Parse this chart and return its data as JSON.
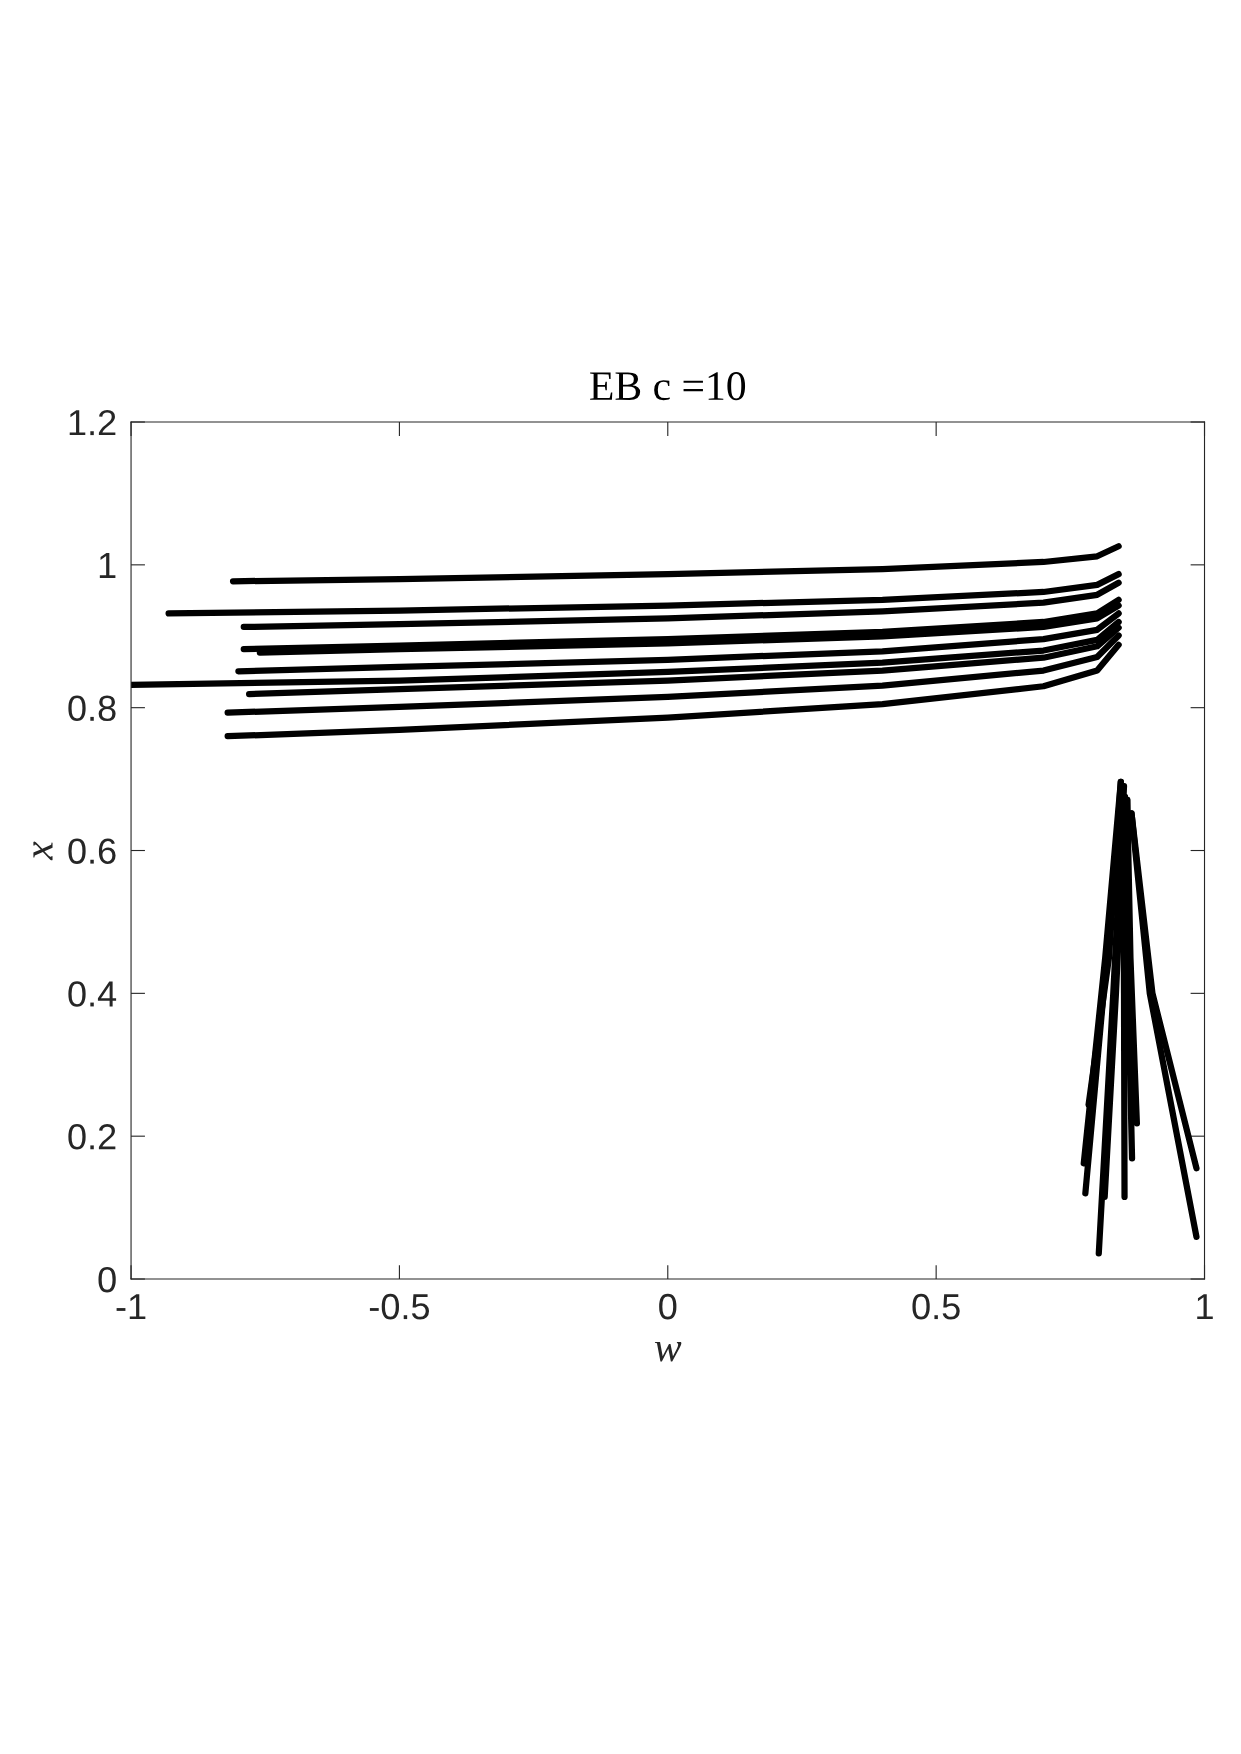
{
  "chart_data": {
    "type": "line",
    "title": "EB c =10",
    "xlabel": "w",
    "ylabel": "x",
    "xlim": [
      -1,
      1
    ],
    "ylim": [
      0,
      1.2
    ],
    "xticks": [
      -1,
      -0.5,
      0,
      0.5,
      1
    ],
    "yticks": [
      0,
      0.2,
      0.4,
      0.6,
      0.8,
      1,
      1.2
    ],
    "grid": false,
    "marker": "none",
    "line_style": "solid",
    "series": [
      {
        "color": "#000000",
        "x": [
          -0.81,
          -0.5,
          0,
          0.4,
          0.7,
          0.8,
          0.84
        ],
        "values": [
          0.977,
          0.98,
          0.987,
          0.994,
          1.004,
          1.012,
          1.026
        ]
      },
      {
        "color": "#000000",
        "x": [
          -0.93,
          -0.5,
          0,
          0.4,
          0.7,
          0.8,
          0.84
        ],
        "values": [
          0.932,
          0.936,
          0.943,
          0.951,
          0.962,
          0.972,
          0.987
        ]
      },
      {
        "color": "#000000",
        "x": [
          -0.79,
          -0.5,
          0,
          0.4,
          0.7,
          0.8,
          0.84
        ],
        "values": [
          0.913,
          0.917,
          0.925,
          0.935,
          0.947,
          0.958,
          0.975
        ]
      },
      {
        "color": "#000000",
        "x": [
          -0.79,
          -0.5,
          0,
          0.4,
          0.7,
          0.8,
          0.84
        ],
        "values": [
          0.882,
          0.887,
          0.896,
          0.906,
          0.92,
          0.932,
          0.951
        ]
      },
      {
        "color": "#000000",
        "x": [
          -0.76,
          -0.5,
          0,
          0.4,
          0.7,
          0.8,
          0.84
        ],
        "values": [
          0.877,
          0.882,
          0.89,
          0.9,
          0.913,
          0.925,
          0.943
        ]
      },
      {
        "color": "#000000",
        "x": [
          -0.8,
          -0.5,
          0,
          0.4,
          0.7,
          0.8,
          0.84
        ],
        "values": [
          0.851,
          0.857,
          0.867,
          0.879,
          0.896,
          0.909,
          0.932
        ]
      },
      {
        "color": "#000000",
        "x": [
          -1.0,
          -0.5,
          0,
          0.4,
          0.7,
          0.8,
          0.84
        ],
        "values": [
          0.832,
          0.838,
          0.85,
          0.863,
          0.88,
          0.895,
          0.92
        ]
      },
      {
        "color": "#000000",
        "x": [
          -0.78,
          -0.5,
          0,
          0.4,
          0.7,
          0.8,
          0.84
        ],
        "values": [
          0.819,
          0.826,
          0.838,
          0.852,
          0.87,
          0.886,
          0.912
        ]
      },
      {
        "color": "#000000",
        "x": [
          -0.82,
          -0.5,
          0,
          0.4,
          0.7,
          0.8,
          0.84
        ],
        "values": [
          0.793,
          0.801,
          0.815,
          0.831,
          0.852,
          0.871,
          0.901
        ]
      },
      {
        "color": "#000000",
        "x": [
          -0.82,
          -0.5,
          0,
          0.4,
          0.7,
          0.8,
          0.84
        ],
        "values": [
          0.76,
          0.769,
          0.786,
          0.805,
          0.83,
          0.852,
          0.888
        ]
      },
      {
        "color": "#000000",
        "x": [
          0.784,
          0.822,
          0.844
        ],
        "values": [
          0.244,
          0.45,
          0.696
        ]
      },
      {
        "color": "#000000",
        "x": [
          0.775,
          0.815,
          0.844
        ],
        "values": [
          0.162,
          0.45,
          0.696
        ]
      },
      {
        "color": "#000000",
        "x": [
          0.778,
          0.818,
          0.848
        ],
        "values": [
          0.12,
          0.45,
          0.68
        ]
      },
      {
        "color": "#000000",
        "x": [
          0.803,
          0.83,
          0.85
        ],
        "values": [
          0.036,
          0.4,
          0.69
        ]
      },
      {
        "color": "#000000",
        "x": [
          0.814,
          0.835,
          0.852
        ],
        "values": [
          0.115,
          0.4,
          0.675
        ]
      },
      {
        "color": "#000000",
        "x": [
          0.851,
          0.85,
          0.848
        ],
        "values": [
          0.115,
          0.4,
          0.69
        ]
      },
      {
        "color": "#000000",
        "x": [
          0.865,
          0.858,
          0.856
        ],
        "values": [
          0.169,
          0.4,
          0.671
        ]
      },
      {
        "color": "#000000",
        "x": [
          0.874,
          0.862,
          0.856
        ],
        "values": [
          0.218,
          0.45,
          0.671
        ]
      },
      {
        "color": "#000000",
        "x": [
          0.985,
          0.903,
          0.864
        ],
        "values": [
          0.155,
          0.4,
          0.652
        ]
      },
      {
        "color": "#000000",
        "x": [
          0.985,
          0.898,
          0.864
        ],
        "values": [
          0.059,
          0.4,
          0.652
        ]
      }
    ]
  }
}
